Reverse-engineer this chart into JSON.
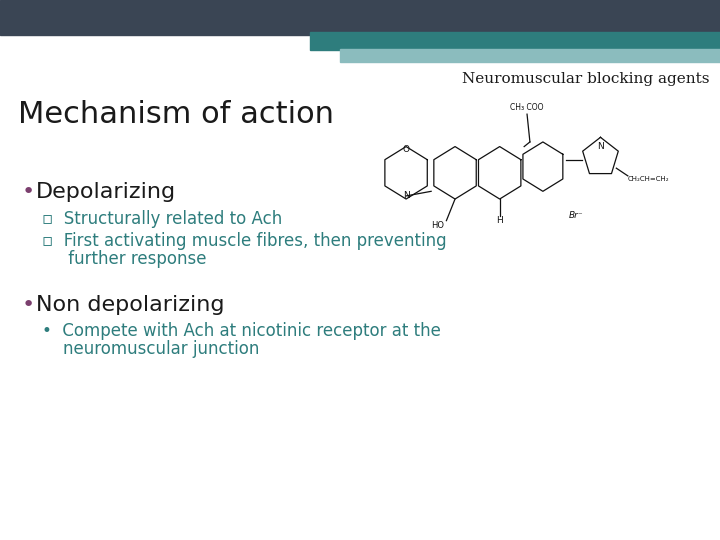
{
  "bg_color": "#ffffff",
  "header_bar1_color": "#3a4554",
  "header_bar2_color": "#2e7d7d",
  "header_bar3_color": "#8bbcbe",
  "title_text": "Neuromuscular blocking agents",
  "title_color": "#1a1a1a",
  "title_fontsize": 11,
  "heading_text": "Mechanism of action",
  "heading_color": "#1a1a1a",
  "heading_fontsize": 22,
  "bullet1_text": "Depolarizing",
  "bullet1_color": "#1a1a1a",
  "bullet1_fontsize": 16,
  "bullet1_marker_color": "#7b3f6e",
  "sub1a_text": "▫  Structurally related to Ach",
  "sub1b_line1": "▫  First activating muscle fibres, then preventing",
  "sub1b_line2": "     further response",
  "sub_color": "#2e7d7d",
  "sub_fontsize": 12,
  "bullet2_text": "Non depolarizing",
  "bullet2_color": "#1a1a1a",
  "bullet2_fontsize": 16,
  "bullet2_marker_color": "#7b3f6e",
  "sub2_line1": "•  Compete with Ach at nicotinic receptor at the",
  "sub2_line2": "    neuromuscular junction",
  "sub2_color": "#2e7d7d",
  "sub2_fontsize": 12,
  "mol_col": "#111111"
}
